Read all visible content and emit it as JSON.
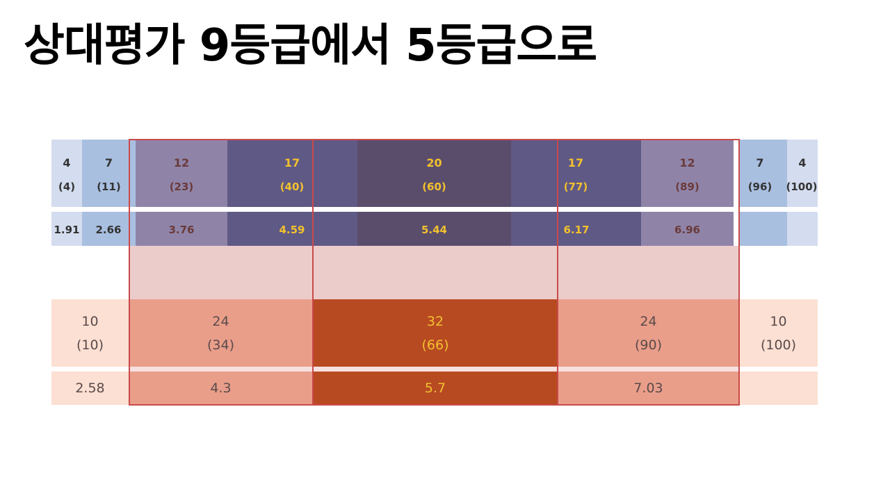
{
  "title": "상대평가 9등급에서 5등급으로",
  "colors": {
    "nine_light": "#d4dcef",
    "nine_mid": "#a9bfe0",
    "nine_mauve": "#8f84a8",
    "nine_dark": "#5f5985",
    "nine_darkest": "#5a4d6c",
    "five_light": "#fbe0d3",
    "five_mid": "#e99e8a",
    "five_dark": "#b84a22",
    "band_pink": "#eccccb",
    "border_red": "#c94a4a",
    "label_gold": "#f2c12e",
    "label_brown": "#6b3a3a"
  },
  "nine_grade": [
    {
      "pct": "4",
      "cum": "(4)",
      "cutoff": "1.91"
    },
    {
      "pct": "7",
      "cum": "(11)",
      "cutoff": "2.66"
    },
    {
      "pct": "12",
      "cum": "(23)",
      "cutoff": "3.76"
    },
    {
      "pct": "17",
      "cum": "(40)",
      "cutoff": "4.59"
    },
    {
      "pct": "20",
      "cum": "(60)",
      "cutoff": "5.44"
    },
    {
      "pct": "17",
      "cum": "(77)",
      "cutoff": "6.17"
    },
    {
      "pct": "12",
      "cum": "(89)",
      "cutoff": "6.96"
    },
    {
      "pct": "7",
      "cum": "(96)",
      "cutoff": ""
    },
    {
      "pct": "4",
      "cum": "(100)",
      "cutoff": ""
    }
  ],
  "five_grade": [
    {
      "pct": "10",
      "cum": "(10)",
      "cutoff": "2.58"
    },
    {
      "pct": "24",
      "cum": "(34)",
      "cutoff": "4.3"
    },
    {
      "pct": "32",
      "cum": "(66)",
      "cutoff": "5.7"
    },
    {
      "pct": "24",
      "cum": "(90)",
      "cutoff": "7.03"
    },
    {
      "pct": "10",
      "cum": "(100)",
      "cutoff": ""
    }
  ]
}
